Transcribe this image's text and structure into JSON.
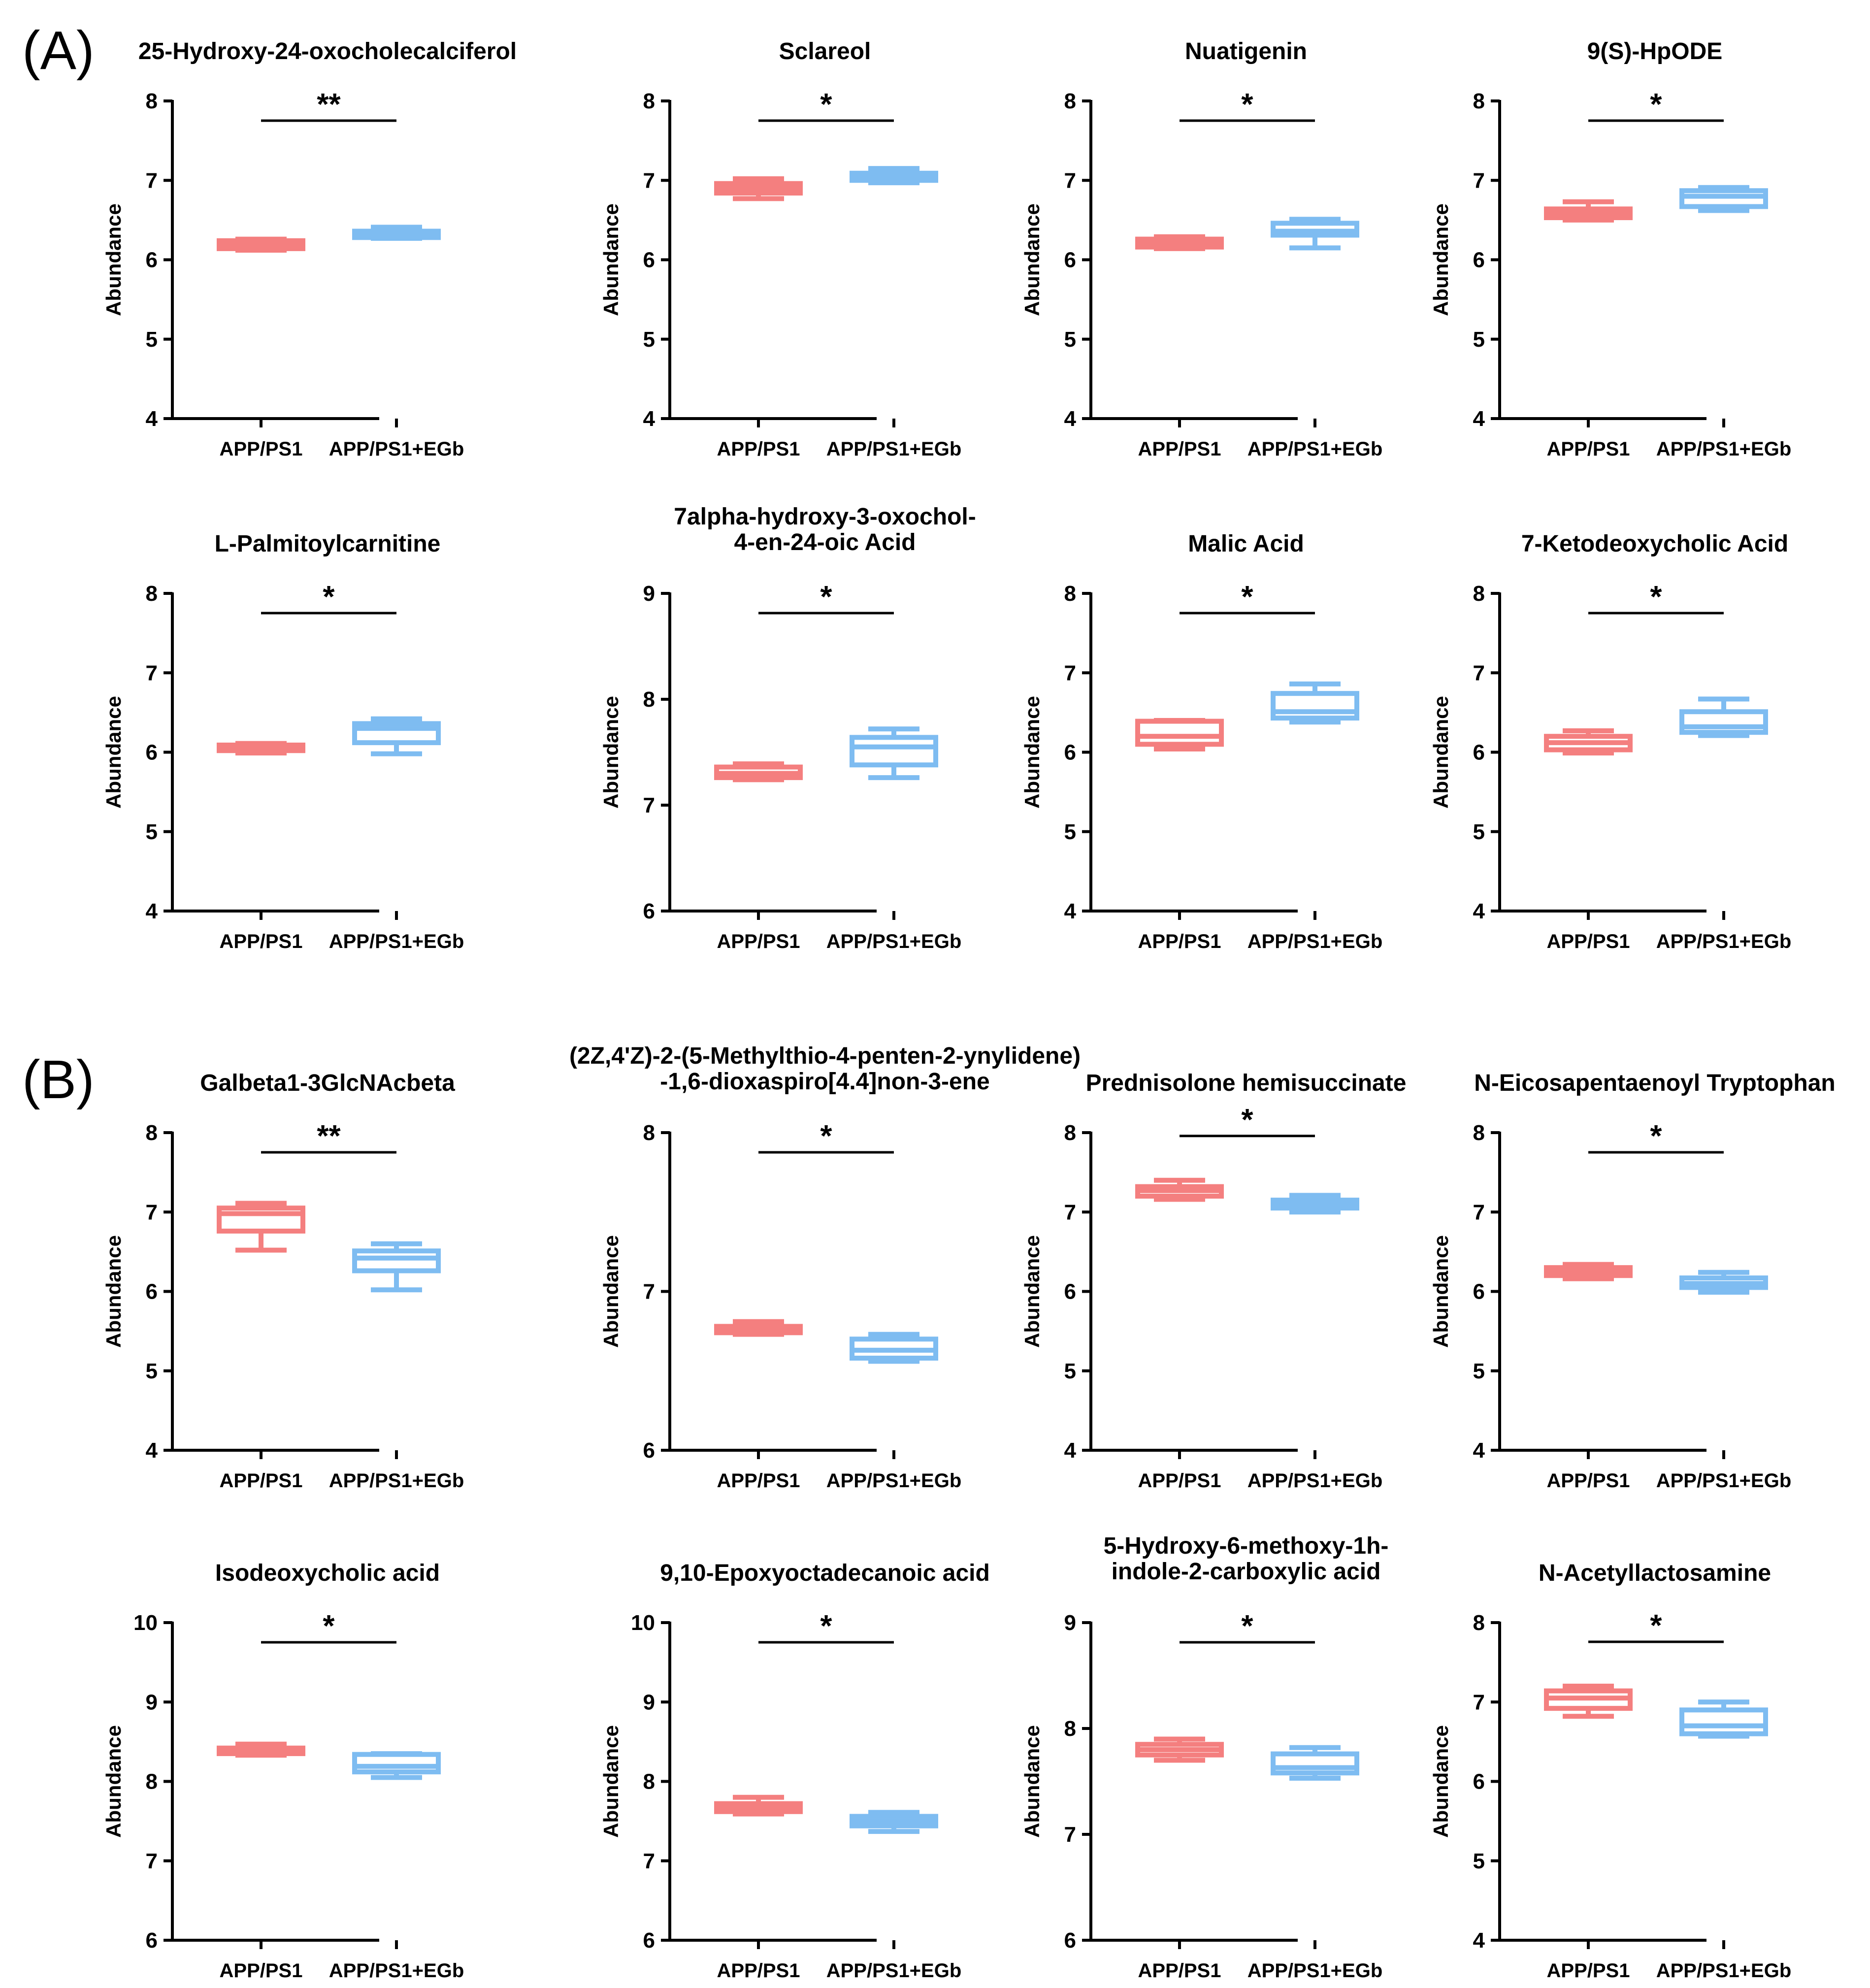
{
  "panels": [
    {
      "label": "(A)",
      "plots": [
        0,
        1,
        2,
        3,
        4,
        5,
        6,
        7
      ]
    },
    {
      "label": "(B)",
      "plots": [
        8,
        9,
        10,
        11,
        12,
        13,
        14,
        15
      ]
    }
  ],
  "group_colors": {
    "APP/PS1": "#F47F7F",
    "APP/PS1+EGb": "#7EBCF1"
  },
  "y_axis_label": "Abundance",
  "chart_data": [
    {
      "type": "box",
      "title": [
        "25-Hydroxy-24-oxocholecalciferol"
      ],
      "ylabel": "Abundance",
      "ylim": [
        4,
        8
      ],
      "yticks": [
        4,
        5,
        6,
        7,
        8
      ],
      "categories": [
        "APP/PS1",
        "APP/PS1+EGb"
      ],
      "significance": "**",
      "boxes": [
        {
          "min": 6.12,
          "q1": 6.14,
          "median": 6.18,
          "q3": 6.24,
          "max": 6.26
        },
        {
          "min": 6.27,
          "q1": 6.28,
          "median": 6.33,
          "q3": 6.36,
          "max": 6.41
        }
      ]
    },
    {
      "type": "box",
      "title": [
        "Sclareol"
      ],
      "ylabel": "Abundance",
      "ylim": [
        4,
        8
      ],
      "yticks": [
        4,
        5,
        6,
        7,
        8
      ],
      "categories": [
        "APP/PS1",
        "APP/PS1+EGb"
      ],
      "significance": "*",
      "boxes": [
        {
          "min": 6.77,
          "q1": 6.84,
          "median": 6.9,
          "q3": 6.96,
          "max": 7.02
        },
        {
          "min": 6.97,
          "q1": 7.0,
          "median": 7.05,
          "q3": 7.09,
          "max": 7.15
        }
      ]
    },
    {
      "type": "box",
      "title": [
        "Nuatigenin"
      ],
      "ylabel": "Abundance",
      "ylim": [
        4,
        8
      ],
      "yticks": [
        4,
        5,
        6,
        7,
        8
      ],
      "categories": [
        "APP/PS1",
        "APP/PS1+EGb"
      ],
      "significance": "*",
      "boxes": [
        {
          "min": 6.14,
          "q1": 6.16,
          "median": 6.22,
          "q3": 6.26,
          "max": 6.29
        },
        {
          "min": 6.15,
          "q1": 6.31,
          "median": 6.36,
          "q3": 6.46,
          "max": 6.51
        }
      ]
    },
    {
      "type": "box",
      "title": [
        "9(S)-HpODE"
      ],
      "ylabel": "Abundance",
      "ylim": [
        4,
        8
      ],
      "yticks": [
        4,
        5,
        6,
        7,
        8
      ],
      "categories": [
        "APP/PS1",
        "APP/PS1+EGb"
      ],
      "significance": "*",
      "boxes": [
        {
          "min": 6.5,
          "q1": 6.53,
          "median": 6.58,
          "q3": 6.64,
          "max": 6.73
        },
        {
          "min": 6.62,
          "q1": 6.67,
          "median": 6.8,
          "q3": 6.87,
          "max": 6.91
        }
      ]
    },
    {
      "type": "box",
      "title": [
        "L-Palmitoylcarnitine"
      ],
      "ylabel": "Abundance",
      "ylim": [
        4,
        8
      ],
      "yticks": [
        4,
        5,
        6,
        7,
        8
      ],
      "categories": [
        "APP/PS1",
        "APP/PS1+EGb"
      ],
      "significance": "*",
      "boxes": [
        {
          "min": 5.99,
          "q1": 6.02,
          "median": 6.05,
          "q3": 6.09,
          "max": 6.11
        },
        {
          "min": 5.98,
          "q1": 6.12,
          "median": 6.3,
          "q3": 6.36,
          "max": 6.42
        }
      ]
    },
    {
      "type": "box",
      "title": [
        "7alpha-hydroxy-3-oxochol-",
        "4-en-24-oic Acid"
      ],
      "ylabel": "Abundance",
      "ylim": [
        6,
        9
      ],
      "yticks": [
        6,
        7,
        8,
        9
      ],
      "categories": [
        "APP/PS1",
        "APP/PS1+EGb"
      ],
      "significance": "*",
      "boxes": [
        {
          "min": 7.24,
          "q1": 7.26,
          "median": 7.3,
          "q3": 7.36,
          "max": 7.39
        },
        {
          "min": 7.26,
          "q1": 7.38,
          "median": 7.55,
          "q3": 7.64,
          "max": 7.72
        }
      ]
    },
    {
      "type": "box",
      "title": [
        "Malic Acid"
      ],
      "ylabel": "Abundance",
      "ylim": [
        4,
        8
      ],
      "yticks": [
        4,
        5,
        6,
        7,
        8
      ],
      "categories": [
        "APP/PS1",
        "APP/PS1+EGb"
      ],
      "significance": "*",
      "boxes": [
        {
          "min": 6.04,
          "q1": 6.1,
          "median": 6.2,
          "q3": 6.39,
          "max": 6.4
        },
        {
          "min": 6.38,
          "q1": 6.43,
          "median": 6.51,
          "q3": 6.74,
          "max": 6.86
        }
      ]
    },
    {
      "type": "box",
      "title": [
        "7-Ketodeoxycholic Acid"
      ],
      "ylabel": "Abundance",
      "ylim": [
        4,
        8
      ],
      "yticks": [
        4,
        5,
        6,
        7,
        8
      ],
      "categories": [
        "APP/PS1",
        "APP/PS1+EGb"
      ],
      "significance": "*",
      "boxes": [
        {
          "min": 5.99,
          "q1": 6.03,
          "median": 6.12,
          "q3": 6.2,
          "max": 6.27
        },
        {
          "min": 6.21,
          "q1": 6.25,
          "median": 6.32,
          "q3": 6.51,
          "max": 6.67
        }
      ]
    },
    {
      "type": "box",
      "title": [
        "Galbeta1-3GlcNAcbeta"
      ],
      "ylabel": "Abundance",
      "ylim": [
        4,
        8
      ],
      "yticks": [
        4,
        5,
        6,
        7,
        8
      ],
      "categories": [
        "APP/PS1",
        "APP/PS1+EGb"
      ],
      "significance": "**",
      "boxes": [
        {
          "min": 6.52,
          "q1": 6.76,
          "median": 6.98,
          "q3": 7.05,
          "max": 7.11
        },
        {
          "min": 6.02,
          "q1": 6.26,
          "median": 6.42,
          "q3": 6.51,
          "max": 6.6
        }
      ]
    },
    {
      "type": "box",
      "title": [
        "(2Z,4'Z)-2-(5-Methylthio-4-penten-2-ynylidene)",
        "-1,6-dioxaspiro[4.4]non-3-ene"
      ],
      "ylabel": "Abundance",
      "ylim": [
        6,
        8
      ],
      "yticks": [
        6,
        7,
        8
      ],
      "categories": [
        "APP/PS1",
        "APP/PS1+EGb"
      ],
      "significance": "*",
      "boxes": [
        {
          "min": 6.73,
          "q1": 6.74,
          "median": 6.76,
          "q3": 6.78,
          "max": 6.81
        },
        {
          "min": 6.56,
          "q1": 6.58,
          "median": 6.63,
          "q3": 6.7,
          "max": 6.73
        }
      ]
    },
    {
      "type": "box",
      "title": [
        "Prednisolone hemisuccinate"
      ],
      "ylabel": "Abundance",
      "ylim": [
        4,
        8
      ],
      "yticks": [
        4,
        5,
        6,
        7,
        8
      ],
      "categories": [
        "APP/PS1",
        "APP/PS1+EGb"
      ],
      "significance": "*",
      "boxes": [
        {
          "min": 7.16,
          "q1": 7.2,
          "median": 7.27,
          "q3": 7.32,
          "max": 7.4
        },
        {
          "min": 7.0,
          "q1": 7.05,
          "median": 7.11,
          "q3": 7.15,
          "max": 7.21
        }
      ]
    },
    {
      "type": "box",
      "title": [
        "N-Eicosapentaenoyl Tryptophan"
      ],
      "ylabel": "Abundance",
      "ylim": [
        4,
        8
      ],
      "yticks": [
        4,
        5,
        6,
        7,
        8
      ],
      "categories": [
        "APP/PS1",
        "APP/PS1+EGb"
      ],
      "significance": "*",
      "boxes": [
        {
          "min": 6.16,
          "q1": 6.2,
          "median": 6.26,
          "q3": 6.3,
          "max": 6.34
        },
        {
          "min": 5.99,
          "q1": 6.05,
          "median": 6.1,
          "q3": 6.17,
          "max": 6.24
        }
      ]
    },
    {
      "type": "box",
      "title": [
        "Isodeoxycholic acid"
      ],
      "ylabel": "Abundance",
      "ylim": [
        6,
        10
      ],
      "yticks": [
        6,
        7,
        8,
        9,
        10
      ],
      "categories": [
        "APP/PS1",
        "APP/PS1+EGb"
      ],
      "significance": "*",
      "boxes": [
        {
          "min": 8.33,
          "q1": 8.35,
          "median": 8.38,
          "q3": 8.42,
          "max": 8.47
        },
        {
          "min": 8.05,
          "q1": 8.12,
          "median": 8.19,
          "q3": 8.34,
          "max": 8.35
        }
      ]
    },
    {
      "type": "box",
      "title": [
        "9,10-Epoxyoctadecanoic acid"
      ],
      "ylabel": "Abundance",
      "ylim": [
        6,
        10
      ],
      "yticks": [
        6,
        7,
        8,
        9,
        10
      ],
      "categories": [
        "APP/PS1",
        "APP/PS1+EGb"
      ],
      "significance": "*",
      "boxes": [
        {
          "min": 7.59,
          "q1": 7.62,
          "median": 7.66,
          "q3": 7.72,
          "max": 7.8
        },
        {
          "min": 7.37,
          "q1": 7.44,
          "median": 7.5,
          "q3": 7.56,
          "max": 7.61
        }
      ]
    },
    {
      "type": "box",
      "title": [
        "5-Hydroxy-6-methoxy-1h-",
        "indole-2-carboxylic acid"
      ],
      "ylabel": "Abundance",
      "ylim": [
        6,
        9
      ],
      "yticks": [
        6,
        7,
        8,
        9
      ],
      "categories": [
        "APP/PS1",
        "APP/PS1+EGb"
      ],
      "significance": "*",
      "boxes": [
        {
          "min": 7.7,
          "q1": 7.75,
          "median": 7.8,
          "q3": 7.85,
          "max": 7.9
        },
        {
          "min": 7.53,
          "q1": 7.58,
          "median": 7.63,
          "q3": 7.76,
          "max": 7.82
        }
      ]
    },
    {
      "type": "box",
      "title": [
        "N-Acetyllactosamine"
      ],
      "ylabel": "Abundance",
      "ylim": [
        4,
        8
      ],
      "yticks": [
        4,
        5,
        6,
        7,
        8
      ],
      "categories": [
        "APP/PS1",
        "APP/PS1+EGb"
      ],
      "significance": "*",
      "boxes": [
        {
          "min": 6.82,
          "q1": 6.92,
          "median": 7.05,
          "q3": 7.14,
          "max": 7.2
        },
        {
          "min": 6.57,
          "q1": 6.6,
          "median": 6.7,
          "q3": 6.9,
          "max": 7.0
        }
      ]
    }
  ]
}
